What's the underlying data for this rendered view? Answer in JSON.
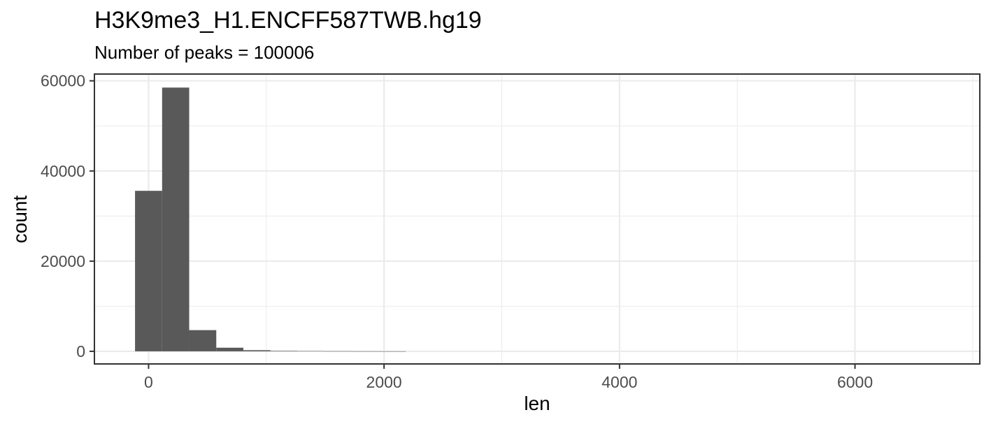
{
  "chart_data": {
    "type": "bar",
    "title": "H3K9me3_H1.ENCFF587TWB.hg19",
    "subtitle": "Number of peaks = 100006",
    "xlabel": "len",
    "ylabel": "count",
    "bin_edges": [
      -115,
      115,
      345,
      575,
      805,
      1035,
      1265,
      1495,
      1725,
      1955,
      2185
    ],
    "values": [
      35600,
      58500,
      4700,
      800,
      250,
      100,
      50,
      30,
      15,
      8
    ],
    "xlim": [
      -460,
      7060
    ],
    "ylim": [
      -2800,
      61500
    ],
    "x_ticks": [
      0,
      2000,
      4000,
      6000
    ],
    "y_ticks": [
      0,
      20000,
      40000,
      60000
    ],
    "x_tick_labels": [
      "0",
      "2000",
      "4000",
      "6000"
    ],
    "y_tick_labels": [
      "0",
      "20000",
      "40000",
      "60000"
    ],
    "grid": true,
    "bar_color": "#595959"
  }
}
